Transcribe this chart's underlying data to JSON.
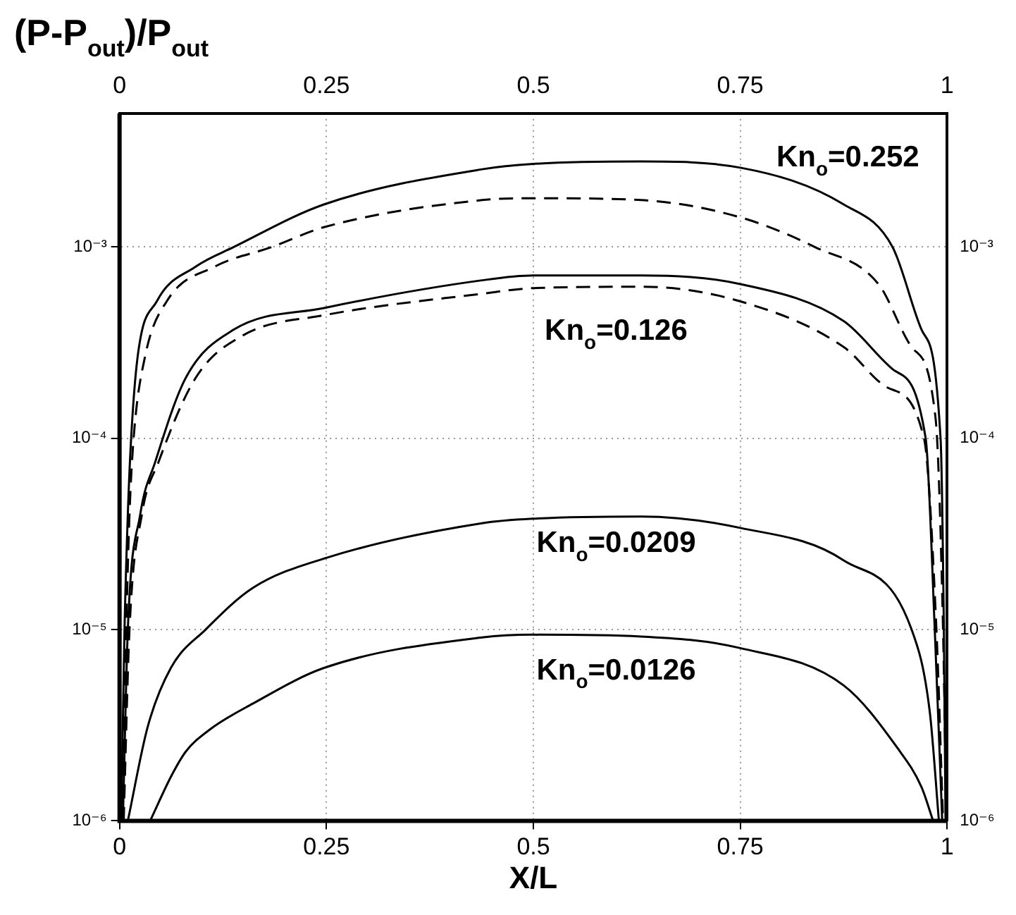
{
  "chart_data": {
    "type": "line",
    "xlabel": "X/L",
    "ylabel": "(P-P$_{out}$)/P$_{out}$",
    "xlim": [
      0,
      1
    ],
    "xticks": [
      0,
      0.25,
      0.5,
      0.75,
      1
    ],
    "x2lim": [
      0,
      1
    ],
    "x2ticks": [
      0,
      0.25,
      0.5,
      0.75,
      1
    ],
    "ylim": [
      1e-06,
      0.005
    ],
    "yticks": [
      {
        "value": 1e-06,
        "label": "10⁻⁶"
      },
      {
        "value": 1e-05,
        "label": "10⁻⁵"
      },
      {
        "value": 0.0001,
        "label": "10⁻⁴"
      },
      {
        "value": 0.001,
        "label": "10⁻³"
      }
    ],
    "log": "y",
    "grid": true,
    "legend": false,
    "marker": "none",
    "series": [
      {
        "color": "#000000",
        "line_style": "solid",
        "x": [
          0.002,
          0.006,
          0.01,
          0.014,
          0.022,
          0.045,
          0.092,
          0.138,
          0.247,
          0.438,
          0.5,
          0.63,
          0.75,
          0.875,
          0.934,
          0.969,
          0.992,
          0.996,
          0.998
        ],
        "values": [
          1e-06,
          1e-05,
          4e-05,
          0.0001,
          0.00027,
          0.00052,
          0.00079,
          0.001,
          0.00167,
          0.00255,
          0.00272,
          0.0028,
          0.0026,
          0.00167,
          0.001,
          0.00037,
          0.0001,
          1e-05,
          1e-06
        ]
      },
      {
        "color": "#000000",
        "line_style": "dashed",
        "x": [
          0.003,
          0.008,
          0.012,
          0.017,
          0.031,
          0.057,
          0.115,
          0.184,
          0.247,
          0.438,
          0.5,
          0.63,
          0.75,
          0.84,
          0.917,
          0.957,
          0.986,
          0.995,
          0.999
        ],
        "values": [
          1e-06,
          1e-05,
          4e-05,
          0.0001,
          0.00027,
          0.00052,
          0.00079,
          0.001,
          0.00127,
          0.00176,
          0.0018,
          0.00176,
          0.00143,
          0.001,
          0.00064,
          0.0003,
          0.000127,
          1e-05,
          1e-06
        ]
      },
      {
        "color": "#000000",
        "line_style": "solid",
        "x": [
          0.004,
          0.01,
          0.025,
          0.043,
          0.08,
          0.138,
          0.247,
          0.438,
          0.5,
          0.63,
          0.75,
          0.875,
          0.934,
          0.974,
          0.985,
          0.994
        ],
        "values": [
          1e-06,
          1e-05,
          4e-05,
          7.5e-05,
          0.000207,
          0.00037,
          0.00048,
          0.00067,
          0.00071,
          0.00071,
          0.00064,
          0.00041,
          0.00023,
          0.0001,
          1e-05,
          1e-06
        ]
      },
      {
        "color": "#000000",
        "line_style": "dashed",
        "x": [
          0.005,
          0.012,
          0.027,
          0.047,
          0.092,
          0.149,
          0.247,
          0.438,
          0.5,
          0.63,
          0.75,
          0.875,
          0.927,
          0.972,
          0.987,
          0.995
        ],
        "values": [
          1e-06,
          1e-05,
          4e-05,
          7.5e-05,
          0.000207,
          0.000345,
          0.00044,
          0.00057,
          0.00061,
          0.00062,
          0.00052,
          0.0003,
          0.000185,
          0.0001,
          1e-05,
          1e-06
        ]
      },
      {
        "color": "#000000",
        "line_style": "solid",
        "x": [
          0.01,
          0.034,
          0.062,
          0.104,
          0.161,
          0.247,
          0.438,
          0.5,
          0.63,
          0.75,
          0.875,
          0.957,
          0.979,
          0.99
        ],
        "values": [
          1e-06,
          3.1e-06,
          6.3e-06,
          1e-05,
          1.65e-05,
          2.35e-05,
          3.6e-05,
          3.8e-05,
          3.9e-05,
          3.4e-05,
          2.3e-05,
          1e-05,
          3.7e-06,
          1e-06
        ]
      },
      {
        "color": "#000000",
        "line_style": "solid",
        "x": [
          0.037,
          0.063,
          0.08,
          0.109,
          0.161,
          0.247,
          0.438,
          0.5,
          0.63,
          0.75,
          0.875,
          0.94,
          0.969,
          0.983
        ],
        "values": [
          1e-06,
          1.73e-06,
          2.3e-06,
          3e-06,
          4.1e-06,
          6.3e-06,
          9.1e-06,
          9.4e-06,
          9.2e-06,
          8e-06,
          5.1e-06,
          2.4e-06,
          1.5e-06,
          1e-06
        ]
      }
    ],
    "annotations": [
      "Kn$_{o}$=0.252",
      "Kn$_{o}$=0.126",
      "Kn$_{o}$=0.0209",
      "Kn$_{o}$=0.0126"
    ]
  }
}
